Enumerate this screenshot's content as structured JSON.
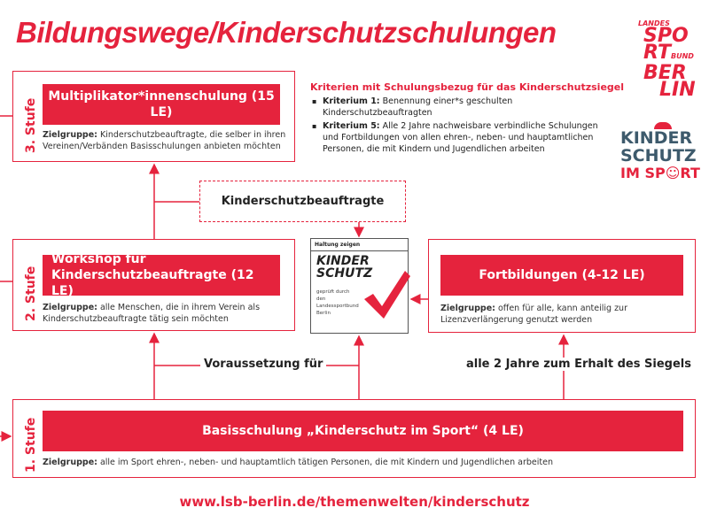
{
  "title": "Bildungswege/Kinderschutzschulungen",
  "colors": {
    "accent": "#e5233d",
    "logo_blue": "#3d5a6c"
  },
  "stufe3": {
    "label": "3. Stufe",
    "course": "Multiplikator*innenschulung (15 LE)",
    "zg_label": "Zielgruppe:",
    "zg_text": " Kinderschutzbeauftragte, die selber in ihren Vereinen/Verbänden Basisschulungen anbieten möchten"
  },
  "criteria": {
    "heading": "Kriterien mit Schulungsbezug für das Kinderschutzsiegel",
    "items": [
      {
        "label": "Kriterium 1:",
        "text": " Benennung einer*s geschulten Kinderschutzbeauftragten"
      },
      {
        "label": "Kriterium 5:",
        "text": " Alle 2 Jahre nachweisbare verbindliche Schulungen und Fortbildungen von allen ehren-, neben- und hauptamtlichen Personen, die mit Kindern und Jugendlichen arbeiten"
      }
    ]
  },
  "kinderschutzbeauftragte": "Kinderschutzbeauftragte",
  "stufe2": {
    "label": "2. Stufe",
    "course": "Workshop für Kinderschutzbeauftragte (12 LE)",
    "zg_label": "Zielgruppe:",
    "zg_text": " alle Menschen, die in ihrem Verein als Kinderschutzbeauftragte tätig sein möchten"
  },
  "seal": {
    "top": "Haltung zeigen",
    "line1": "KINDER",
    "line2": "SCHUTZ",
    "sub": "geprüft durch den Landessportbund Berlin"
  },
  "fortbildungen": {
    "course": "Fortbildungen (4-12 LE)",
    "zg_label": "Zielgruppe:",
    "zg_text": " offen für alle, kann anteilig zur Lizenzverlängerung genutzt werden"
  },
  "voraussetzung": "Voraussetzung für",
  "alle2jahre": "alle 2 Jahre zum Erhalt des Siegels",
  "stufe1": {
    "label": "1. Stufe",
    "course": "Basisschulung „Kinderschutz im Sport“ (4 LE)",
    "zg_label": "Zielgruppe:",
    "zg_text": " alle im Sport ehren-, neben- und hauptamtlich tätigen Personen, die mit Kindern und Jugendlichen arbeiten"
  },
  "logo_lsb": {
    "l1": "LANDES",
    "l2": "SPO",
    "l3": "RT",
    "l3b": "BUND",
    "l4": "BER",
    "l5": "LIN"
  },
  "logo_ks": {
    "l1": "KINDER",
    "l2": "SCHUTZ",
    "l3": "IM SPORT"
  },
  "url": "www.lsb-berlin.de/themenwelten/kinderschutz"
}
